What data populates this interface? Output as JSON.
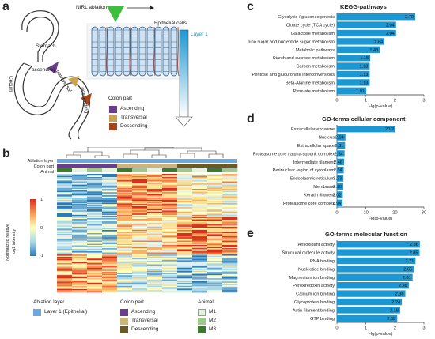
{
  "panels": {
    "a": "a",
    "b": "b",
    "c": "c",
    "d": "d",
    "e": "e"
  },
  "panel_a": {
    "stomach": "Stomach",
    "cecum": "Cecum",
    "ascending": "ascending",
    "transversal": "transversal",
    "descending": "descending",
    "nirl": "NIRL ablation",
    "epithelial": "Epithelial cells",
    "layer1": "Layer 1",
    "colon_part_title": "Colon part",
    "legend": [
      {
        "label": "Ascending",
        "color": "#6a3d8f"
      },
      {
        "label": "Transversal",
        "color": "#c9a34e"
      },
      {
        "label": "Descending",
        "color": "#a0471e"
      }
    ]
  },
  "panel_b": {
    "row_labels": [
      "Ablation layer",
      "Colon part",
      "Animal"
    ],
    "colorbar_label_1": "Normalized relative",
    "colorbar_label_2": "log2 intensity",
    "colorbar_ticks": [
      "1",
      "0",
      "-1"
    ],
    "legend_ablation_title": "Ablation layer",
    "legend_ablation_item": "Layer 1 (Epithelial)",
    "legend_colon_title": "Colon part",
    "legend_colon_items": [
      "Ascending",
      "Transversal",
      "Descending"
    ],
    "legend_animal_title": "Animal",
    "legend_animal_items": [
      "M1",
      "M2",
      "M3"
    ],
    "colors": {
      "ablation": "#6fa8dc",
      "ascending": "#6a3d8f",
      "transversal": "#cdb57a",
      "descending": "#6b5a1e",
      "m1": "#e6f2dc",
      "m2": "#9fc98a",
      "m3": "#3c7a2c"
    }
  },
  "chart_data": [
    {
      "type": "bar",
      "title": "KEGG-pathways",
      "xlabel": "−lg(p-value)",
      "xlim": [
        0,
        3
      ],
      "ticks": [
        "0",
        "1",
        "2",
        "3"
      ],
      "categories": [
        "Glycolysis / gluconeogenesis",
        "Citrate cycle (TCA cycle)",
        "Galactose metabolism",
        "Amino sugar and nucleotide sugar metabolism",
        "Metabolic pathways",
        "Starch and sucrose metabolism",
        "Carbon metabolism",
        "Pentose and glucuronate interconversions",
        "Beta-Alanine metabolism",
        "Pyruvate metabolism"
      ],
      "values": [
        2.7,
        2.04,
        2.04,
        1.64,
        1.48,
        1.15,
        1.13,
        1.13,
        1.13,
        1.01
      ],
      "labels": [
        "2.70",
        "2.04",
        "2.04",
        "1.64",
        "1.48",
        "1.15",
        "1.13",
        "1.13",
        "1.13",
        "1.01"
      ]
    },
    {
      "type": "bar",
      "title": "GO-terms cellular component",
      "xlabel": "−lg(p-value)",
      "xlim": [
        0,
        30
      ],
      "ticks": [
        "0",
        "10",
        "20",
        "30"
      ],
      "categories": [
        "Extracellular exosome",
        "Nucleus",
        "Extracellular space",
        "Proteasome core / alpha-subunit complex",
        "Intermediate filament",
        "Perinuclear region of cytoplasm",
        "Endoplasmic reticulum",
        "Membrane",
        "Keratin filament",
        "Proteasome core complex"
      ],
      "values": [
        20.2,
        2.94,
        2.81,
        2.64,
        2.46,
        2.34,
        2.23,
        2.18,
        2.02,
        1.94
      ],
      "labels": [
        "20.2",
        "2.94",
        "2.81",
        "2.64",
        "2.46",
        "2.34",
        "2.23",
        "2.18",
        "2.02",
        "1.94"
      ]
    },
    {
      "type": "bar",
      "title": "GO-terms molecular function",
      "xlabel": "−lg(p-value)",
      "xlim": [
        0,
        3
      ],
      "ticks": [
        "0",
        "1",
        "2",
        "3"
      ],
      "categories": [
        "Antioxidant activity",
        "Structural molecule activity",
        "RNA binding",
        "Nucleotide binding",
        "Magnesium ion binding",
        "Peroxiredoxin activity",
        "Calcium ion binding",
        "Glycoprotein binding",
        "Actin filament binding",
        "GTP binding"
      ],
      "values": [
        2.86,
        2.85,
        2.71,
        2.65,
        2.61,
        2.48,
        2.36,
        2.24,
        2.18,
        2.08
      ],
      "labels": [
        "2.86",
        "2.85",
        "2.71",
        "2.65",
        "2.61",
        "2.48",
        "2.36",
        "2.24",
        "2.18",
        "2.08"
      ]
    }
  ],
  "bar_color": "#1b98d4"
}
